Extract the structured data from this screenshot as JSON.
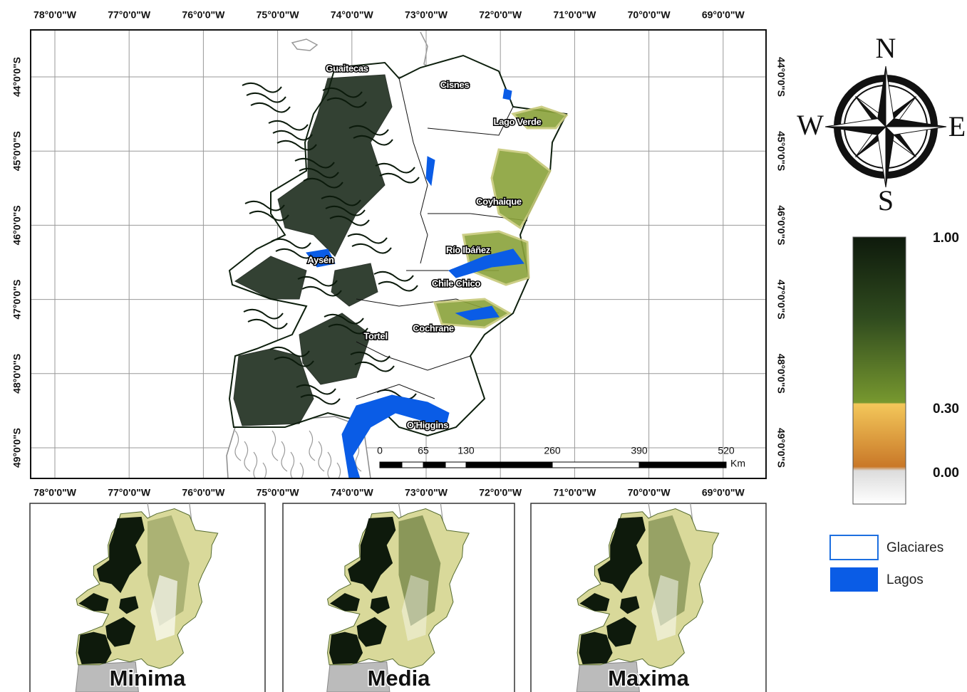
{
  "map": {
    "longitudes": [
      "78°0'0\"W",
      "77°0'0\"W",
      "76°0'0\"W",
      "75°0'0\"W",
      "74°0'0\"W",
      "73°0'0\"W",
      "72°0'0\"W",
      "71°0'0\"W",
      "70°0'0\"W",
      "69°0'0\"W"
    ],
    "latitudes": [
      "44°0'0\"S",
      "45°0'0\"S",
      "46°0'0\"S",
      "47°0'0\"S",
      "48°0'0\"S",
      "49°0'0\"S"
    ],
    "places": [
      "Guaitecas",
      "Cisnes",
      "Lago Verde",
      "Coyhaique",
      "Río Ibáñez",
      "Aysén",
      "Chile Chico",
      "Cochrane",
      "Tortel",
      "O'Higgins"
    ],
    "scale_bar": {
      "ticks": [
        "0",
        "65",
        "130",
        "260",
        "390",
        "520"
      ],
      "unit": "Km"
    }
  },
  "compass": {
    "north": "N",
    "south": "S",
    "east": "E",
    "west": "W"
  },
  "colorbar": {
    "labels": [
      "1.00",
      "0.30",
      "0.00"
    ]
  },
  "legend": [
    "Glaciares",
    "Lagos"
  ],
  "insets": [
    "Minima",
    "Media",
    "Maxima"
  ]
}
